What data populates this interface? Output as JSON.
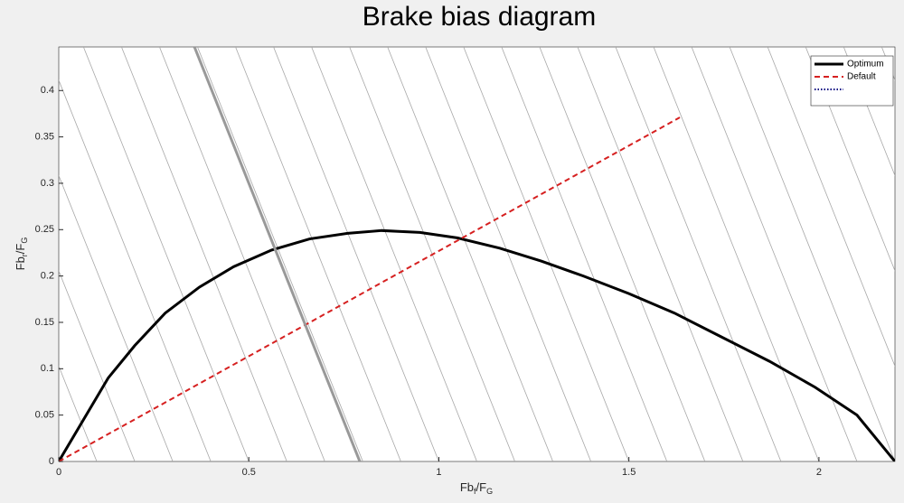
{
  "chart_data": {
    "type": "line",
    "title": "Brake bias diagram",
    "xlabel": [
      "Fb",
      "f",
      "/F",
      "G"
    ],
    "ylabel": [
      "Fb",
      "r",
      "/F",
      "G"
    ],
    "xlim": [
      0,
      2.2
    ],
    "ylim": [
      0,
      0.447
    ],
    "xticks": [
      0,
      0.5,
      1,
      1.5,
      2
    ],
    "yticks": [
      0,
      0.05,
      0.1,
      0.15,
      0.2,
      0.25,
      0.3,
      0.35,
      0.4
    ],
    "grid": false,
    "legend": "upper right",
    "guide_lines": {
      "color": "#a8a8a8",
      "dx_per_dy": -0.973,
      "x_intercepts": [
        0.1,
        0.2,
        0.3,
        0.4,
        0.5,
        0.6,
        0.7,
        0.8,
        0.9,
        1.0,
        1.1,
        1.2,
        1.3,
        1.4,
        1.5,
        1.6,
        1.7,
        1.8,
        1.9,
        2.0,
        2.1,
        2.2,
        2.3,
        2.4,
        2.5,
        2.6
      ]
    },
    "series": [
      {
        "name": "Optimum",
        "color": "#000000",
        "style": "solid",
        "width": 3,
        "x": [
          0,
          0.13,
          0.2,
          0.28,
          0.37,
          0.46,
          0.56,
          0.66,
          0.76,
          0.85,
          0.95,
          1.05,
          1.16,
          1.27,
          1.38,
          1.5,
          1.62,
          1.74,
          1.87,
          1.99,
          2.1,
          2.2
        ],
        "values": [
          0,
          0.09,
          0.125,
          0.16,
          0.188,
          0.21,
          0.228,
          0.24,
          0.246,
          0.249,
          0.247,
          0.241,
          0.23,
          0.216,
          0.2,
          0.181,
          0.16,
          0.135,
          0.108,
          0.08,
          0.05,
          0
        ]
      },
      {
        "name": "Default",
        "color": "#d62020",
        "style": "dashed",
        "width": 2,
        "x": [
          0,
          1.634
        ],
        "values": [
          0,
          0.371
        ]
      },
      {
        "name": null,
        "color": "#000080",
        "style": "dotted",
        "width": 2,
        "x": [],
        "values": []
      },
      {
        "color": "#999999",
        "style": "solid",
        "width": 3,
        "x": [
          0.357,
          0.792
        ],
        "values": [
          0.447,
          0
        ]
      }
    ]
  }
}
